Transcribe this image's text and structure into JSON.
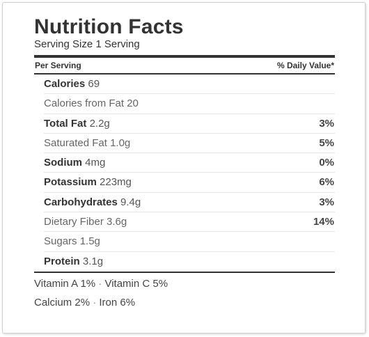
{
  "title": "Nutrition Facts",
  "serving_size": "Serving Size 1 Serving",
  "header": {
    "per_serving": "Per Serving",
    "daily_value": "% Daily Value*"
  },
  "rows": [
    {
      "name": "Calories",
      "amount": "69",
      "dv": "",
      "bold": true
    },
    {
      "name": "Calories from Fat",
      "amount": "20",
      "dv": "",
      "bold": false
    },
    {
      "name": "Total Fat",
      "amount": "2.2g",
      "dv": "3%",
      "bold": true
    },
    {
      "name": "Saturated Fat",
      "amount": "1.0g",
      "dv": "5%",
      "bold": false
    },
    {
      "name": "Sodium",
      "amount": "4mg",
      "dv": "0%",
      "bold": true
    },
    {
      "name": "Potassium",
      "amount": "223mg",
      "dv": "6%",
      "bold": true
    },
    {
      "name": "Carbohydrates",
      "amount": "9.4g",
      "dv": "3%",
      "bold": true
    },
    {
      "name": "Dietary Fiber",
      "amount": "3.6g",
      "dv": "14%",
      "bold": false
    },
    {
      "name": "Sugars",
      "amount": "1.5g",
      "dv": "",
      "bold": false
    },
    {
      "name": "Protein",
      "amount": "3.1g",
      "dv": "",
      "bold": true
    }
  ],
  "vitamins": [
    [
      {
        "name": "Vitamin A",
        "value": "1%"
      },
      {
        "name": "Vitamin C",
        "value": "5%"
      }
    ],
    [
      {
        "name": "Calcium",
        "value": "2%"
      },
      {
        "name": "Iron",
        "value": "6%"
      }
    ]
  ],
  "separator": "·"
}
